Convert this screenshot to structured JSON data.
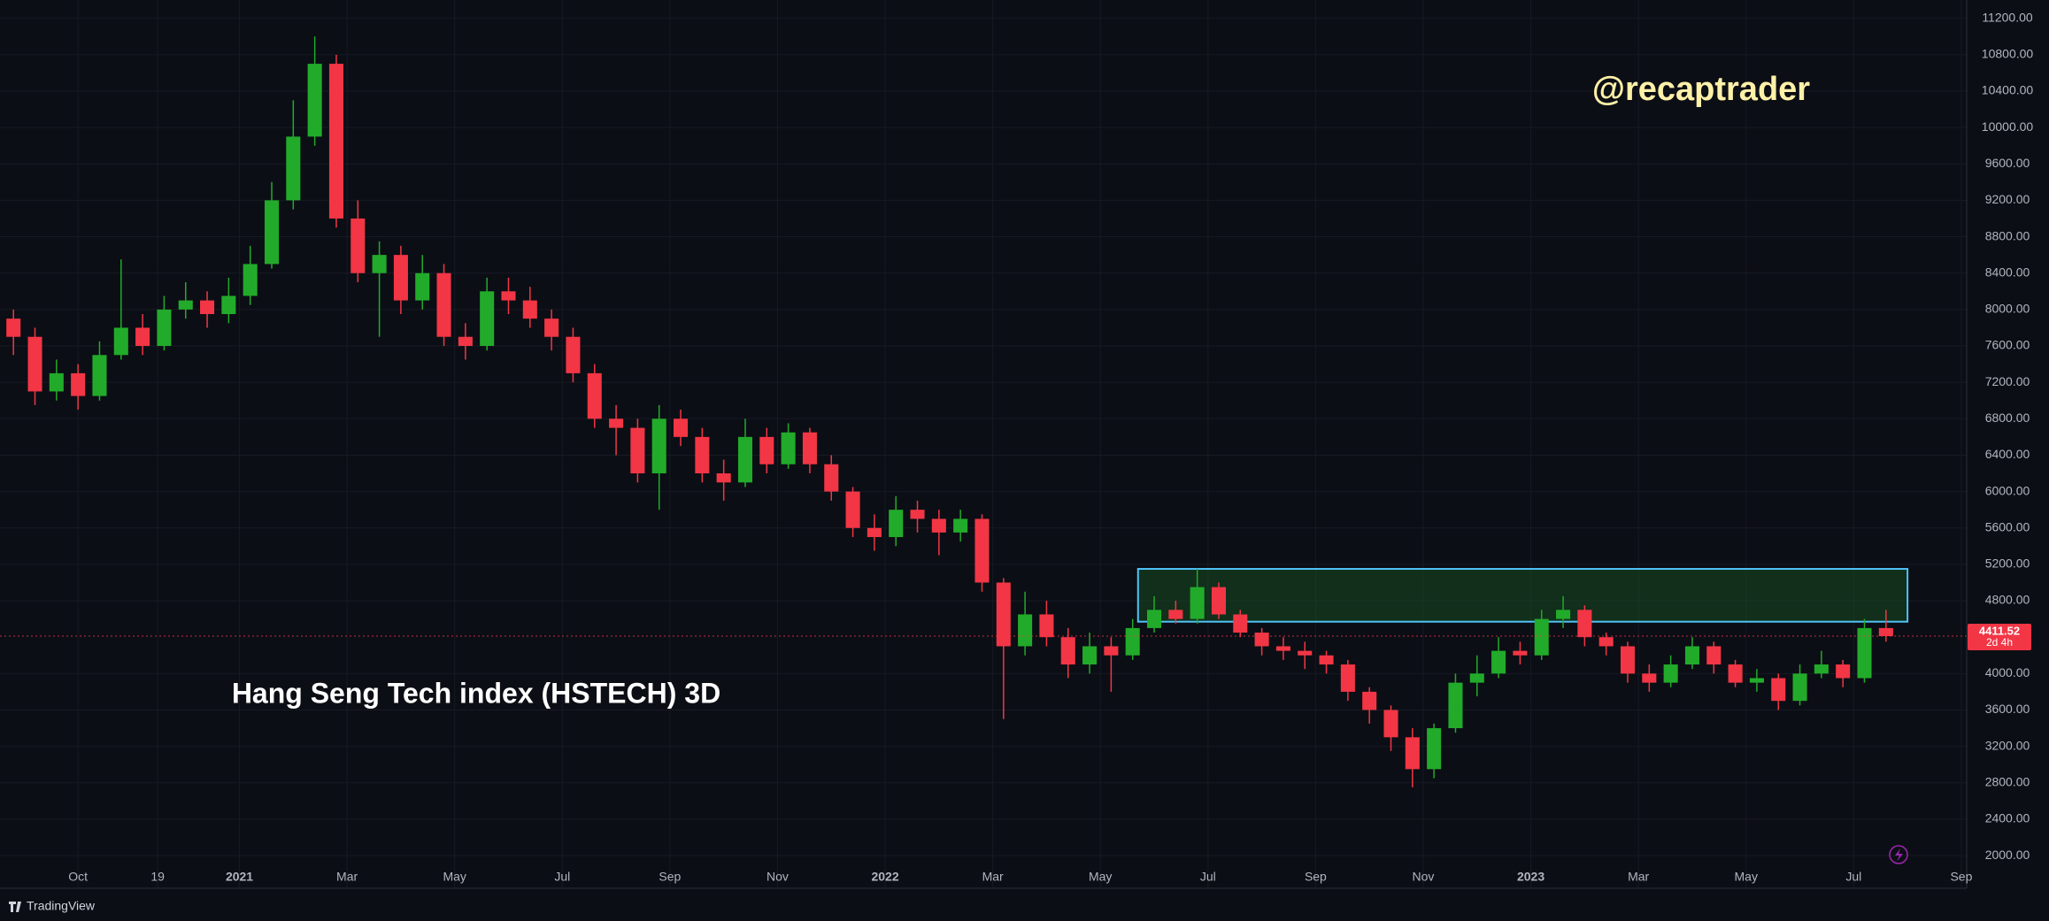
{
  "chart_data": {
    "type": "candlestick",
    "annotations": {
      "handle": "@recaptrader",
      "caption": "Hang Seng Tech index (HSTECH) 3D",
      "countdown": "2d 4h",
      "brand": "TradingView"
    },
    "up_color": "#22ab2a",
    "down_color": "#f23645",
    "grid": true,
    "xlim": [
      -1.45,
      35.1
    ],
    "ylim": [
      1641,
      11401
    ],
    "xticks": [
      {
        "value": 0,
        "label": "Oct"
      },
      {
        "value": 1.48,
        "label": "19"
      },
      {
        "value": 3,
        "label": "2021"
      },
      {
        "value": 5,
        "label": "Mar"
      },
      {
        "value": 7,
        "label": "May"
      },
      {
        "value": 9,
        "label": "Jul"
      },
      {
        "value": 11,
        "label": "Sep"
      },
      {
        "value": 13,
        "label": "Nov"
      },
      {
        "value": 15,
        "label": "2022"
      },
      {
        "value": 17,
        "label": "Mar"
      },
      {
        "value": 19,
        "label": "May"
      },
      {
        "value": 21,
        "label": "Jul"
      },
      {
        "value": 23,
        "label": "Sep"
      },
      {
        "value": 25,
        "label": "Nov"
      },
      {
        "value": 27,
        "label": "2023"
      },
      {
        "value": 29,
        "label": "Mar"
      },
      {
        "value": 31,
        "label": "May"
      },
      {
        "value": 33,
        "label": "Jul"
      },
      {
        "value": 35,
        "label": "Sep"
      }
    ],
    "yticks": [
      {
        "value": 2000,
        "label": "2000.00"
      },
      {
        "value": 2400,
        "label": "2400.00"
      },
      {
        "value": 2800,
        "label": "2800.00"
      },
      {
        "value": 3200,
        "label": "3200.00"
      },
      {
        "value": 3600,
        "label": "3600.00"
      },
      {
        "value": 4000,
        "label": "4000.00"
      },
      {
        "value": 4800,
        "label": "4800.00"
      },
      {
        "value": 5200,
        "label": "5200.00"
      },
      {
        "value": 5600,
        "label": "5600.00"
      },
      {
        "value": 6000,
        "label": "6000.00"
      },
      {
        "value": 6400,
        "label": "6400.00"
      },
      {
        "value": 6800,
        "label": "6800.00"
      },
      {
        "value": 7200,
        "label": "7200.00"
      },
      {
        "value": 7600,
        "label": "7600.00"
      },
      {
        "value": 8000,
        "label": "8000.00"
      },
      {
        "value": 8400,
        "label": "8400.00"
      },
      {
        "value": 8800,
        "label": "8800.00"
      },
      {
        "value": 9200,
        "label": "9200.00"
      },
      {
        "value": 9600,
        "label": "9600.00"
      },
      {
        "value": 10000,
        "label": "10000.00"
      },
      {
        "value": 10400,
        "label": "10400.00"
      },
      {
        "value": 10800,
        "label": "10800.00"
      },
      {
        "value": 11200,
        "label": "11200.00"
      }
    ],
    "zone": {
      "x": [
        19.7,
        34.0
      ],
      "y": [
        4570,
        5150
      ],
      "color": "#4fc3f7"
    },
    "x": [
      -1.2,
      -0.8,
      -0.4,
      0,
      0.4,
      0.8,
      1.2,
      1.6,
      2,
      2.4,
      2.8,
      3.2,
      3.6,
      4,
      4.4,
      4.8,
      5.2,
      5.6,
      6,
      6.4,
      6.8,
      7.2,
      7.6,
      8,
      8.4,
      8.8,
      9.2,
      9.6,
      10,
      10.4,
      10.8,
      11.2,
      11.6,
      12,
      12.4,
      12.8,
      13.2,
      13.6,
      14,
      14.4,
      14.8,
      15.2,
      15.6,
      16,
      16.4,
      16.8,
      17.2,
      17.6,
      18,
      18.4,
      18.8,
      19.2,
      19.6,
      20,
      20.4,
      20.8,
      21.2,
      21.6,
      22,
      22.4,
      22.8,
      23.2,
      23.6,
      24,
      24.4,
      24.8,
      25.2,
      25.6,
      26,
      26.4,
      26.8,
      27.2,
      27.6,
      28,
      28.4,
      28.8,
      29.2,
      29.6,
      30,
      30.4,
      30.8,
      31.2,
      31.6,
      32,
      32.4,
      32.8,
      33.2,
      33.6
    ],
    "open": [
      7900,
      7700,
      7100,
      7300,
      7050,
      7500,
      7800,
      7600,
      8000,
      8100,
      7950,
      8150,
      8500,
      9200,
      9900,
      10700,
      9000,
      8400,
      8600,
      8100,
      8400,
      7700,
      7600,
      8200,
      8100,
      7900,
      7700,
      7300,
      6800,
      6700,
      6200,
      6800,
      6600,
      6200,
      6100,
      6600,
      6300,
      6650,
      6300,
      6000,
      5600,
      5500,
      5800,
      5700,
      5550,
      5700,
      5000,
      4300,
      4650,
      4400,
      4100,
      4300,
      4200,
      4500,
      4700,
      4600,
      4950,
      4650,
      4450,
      4300,
      4250,
      4200,
      4100,
      3800,
      3600,
      3300,
      2950,
      3400,
      3900,
      4000,
      4250,
      4200,
      4600,
      4700,
      4400,
      4300,
      4000,
      3900,
      4100,
      4300,
      4100,
      3900,
      3950,
      3700,
      4000,
      4100,
      3950,
      4500
    ],
    "high": [
      8000,
      7800,
      7450,
      7400,
      7650,
      8550,
      7950,
      8150,
      8300,
      8200,
      8350,
      8700,
      9400,
      10300,
      11000,
      10800,
      9200,
      8750,
      8700,
      8600,
      8500,
      7850,
      8350,
      8350,
      8250,
      8000,
      7800,
      7400,
      6950,
      6800,
      6950,
      6900,
      6700,
      6350,
      6800,
      6700,
      6750,
      6700,
      6400,
      6050,
      5750,
      5950,
      5900,
      5800,
      5800,
      5750,
      5050,
      4900,
      4800,
      4500,
      4450,
      4400,
      4600,
      4850,
      4800,
      5150,
      5000,
      4700,
      4500,
      4400,
      4350,
      4250,
      4150,
      3850,
      3650,
      3400,
      3450,
      4000,
      4200,
      4400,
      4350,
      4700,
      4850,
      4750,
      4450,
      4350,
      4100,
      4200,
      4400,
      4350,
      4150,
      4050,
      4000,
      4100,
      4250,
      4150,
      4600,
      4700
    ],
    "low": [
      7500,
      6950,
      7000,
      6900,
      7000,
      7450,
      7500,
      7550,
      7900,
      7800,
      7850,
      8050,
      8450,
      9100,
      9800,
      8900,
      8300,
      7700,
      7950,
      8000,
      7600,
      7450,
      7550,
      7950,
      7800,
      7550,
      7200,
      6700,
      6400,
      6100,
      5800,
      6500,
      6100,
      5900,
      6050,
      6200,
      6250,
      6200,
      5900,
      5500,
      5350,
      5400,
      5550,
      5300,
      5450,
      4900,
      3500,
      4200,
      4300,
      3950,
      4000,
      3800,
      4150,
      4450,
      4550,
      4550,
      4600,
      4400,
      4200,
      4150,
      4050,
      4000,
      3700,
      3450,
      3150,
      2750,
      2850,
      3350,
      3750,
      3950,
      4100,
      4150,
      4500,
      4300,
      4200,
      3900,
      3800,
      3850,
      4050,
      4000,
      3850,
      3800,
      3600,
      3650,
      3950,
      3850,
      3900,
      4350
    ],
    "close": [
      7700,
      7100,
      7300,
      7050,
      7500,
      7800,
      7600,
      8000,
      8100,
      7950,
      8150,
      8500,
      9200,
      9900,
      10700,
      9000,
      8400,
      8600,
      8100,
      8400,
      7700,
      7600,
      8200,
      8100,
      7900,
      7700,
      7300,
      6800,
      6700,
      6200,
      6800,
      6600,
      6200,
      6100,
      6600,
      6300,
      6650,
      6300,
      6000,
      5600,
      5500,
      5800,
      5700,
      5550,
      5700,
      5000,
      4300,
      4650,
      4400,
      4100,
      4300,
      4200,
      4500,
      4700,
      4600,
      4950,
      4650,
      4450,
      4300,
      4250,
      4200,
      4100,
      3800,
      3600,
      3300,
      2950,
      3400,
      3900,
      4000,
      4250,
      4200,
      4600,
      4700,
      4400,
      4300,
      4000,
      3900,
      4100,
      4300,
      4100,
      3900,
      3950,
      3700,
      4000,
      4100,
      3950,
      4500,
      4411.52
    ]
  }
}
